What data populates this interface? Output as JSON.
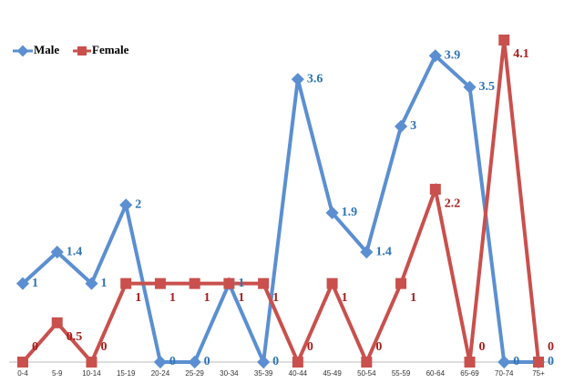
{
  "chart_data": {
    "type": "line",
    "categories": [
      "0-4",
      "5-9",
      "10-14",
      "15-19",
      "20-24",
      "25-29",
      "30-34",
      "35-39",
      "40-44",
      "45-49",
      "50-54",
      "55-59",
      "60-64",
      "65-69",
      "70-74",
      "75+"
    ],
    "series": [
      {
        "name": "Male",
        "color": "#5b8fd1",
        "label_color": "#2e74b5",
        "values": [
          1,
          1.4,
          1,
          2,
          0,
          0,
          1,
          0,
          3.6,
          1.9,
          1.4,
          3,
          3.9,
          3.5,
          0,
          0
        ]
      },
      {
        "name": "Female",
        "color": "#c9504d",
        "label_color": "#a5201e",
        "values": [
          0,
          0.5,
          0,
          1,
          1,
          1,
          1,
          1,
          0,
          1,
          0,
          1,
          2.2,
          0,
          4.1,
          0
        ]
      }
    ],
    "legend": "top-left"
  }
}
